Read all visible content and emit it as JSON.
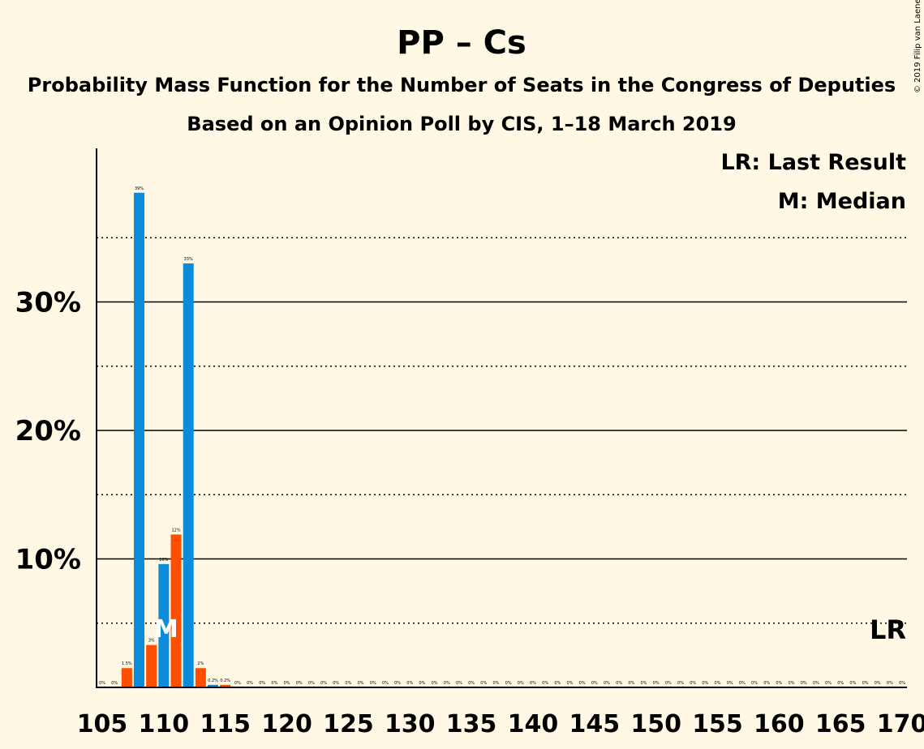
{
  "chart_data": {
    "type": "bar",
    "title": "PP – Cs",
    "subtitle": "Probability Mass Function for the Number of Seats in the Congress of Deputies",
    "subtitle2": "Based on an Opinion Poll by CIS, 1–18 March 2019",
    "copyright": "© 2019 Filip van Laenen",
    "legend": {
      "placement": "top-right",
      "lr": "LR: Last Result",
      "median": "M: Median"
    },
    "markers": {
      "median_label": "M",
      "median_seat": 110,
      "lr_label": "LR",
      "lr_seat": 169
    },
    "xlim": [
      105,
      170
    ],
    "ylim": [
      0,
      42
    ],
    "y_ticks": [
      {
        "value": 10,
        "label": "10%"
      },
      {
        "value": 20,
        "label": "20%"
      },
      {
        "value": 30,
        "label": "30%"
      }
    ],
    "y_minor_ticks": [
      5,
      15,
      25,
      35
    ],
    "x_ticks": [
      105,
      110,
      115,
      120,
      125,
      130,
      135,
      140,
      145,
      150,
      155,
      160,
      165,
      170
    ],
    "colors": {
      "blue": "#0C8CD8",
      "orange": "#FF4E00",
      "bg": "#FFF8E4"
    },
    "bars": [
      {
        "x": 105,
        "value": 0,
        "label": "0%"
      },
      {
        "x": 106,
        "value": 0,
        "label": "0%"
      },
      {
        "x": 107,
        "value": 1.5,
        "label": "1.5%"
      },
      {
        "x": 108,
        "value": 38.5,
        "label": "39%"
      },
      {
        "x": 109,
        "value": 3.3,
        "label": "3%"
      },
      {
        "x": 110,
        "value": 9.6,
        "label": "10%"
      },
      {
        "x": 111,
        "value": 11.9,
        "label": "12%"
      },
      {
        "x": 112,
        "value": 33,
        "label": "33%"
      },
      {
        "x": 113,
        "value": 1.5,
        "label": "2%"
      },
      {
        "x": 114,
        "value": 0.2,
        "label": "0.2%"
      },
      {
        "x": 115,
        "value": 0.2,
        "label": "0.2%"
      },
      {
        "x": 116,
        "value": 0,
        "label": "0%"
      },
      {
        "x": 117,
        "value": 0,
        "label": "0%"
      },
      {
        "x": 118,
        "value": 0,
        "label": "0%"
      },
      {
        "x": 119,
        "value": 0,
        "label": "0%"
      },
      {
        "x": 120,
        "value": 0,
        "label": "0%"
      },
      {
        "x": 121,
        "value": 0,
        "label": "0%"
      },
      {
        "x": 122,
        "value": 0,
        "label": "0%"
      },
      {
        "x": 123,
        "value": 0,
        "label": "0%"
      },
      {
        "x": 124,
        "value": 0,
        "label": "0%"
      },
      {
        "x": 125,
        "value": 0,
        "label": "0%"
      },
      {
        "x": 126,
        "value": 0,
        "label": "0%"
      },
      {
        "x": 127,
        "value": 0,
        "label": "0%"
      },
      {
        "x": 128,
        "value": 0,
        "label": "0%"
      },
      {
        "x": 129,
        "value": 0,
        "label": "0%"
      },
      {
        "x": 130,
        "value": 0,
        "label": "0%"
      },
      {
        "x": 131,
        "value": 0,
        "label": "0%"
      },
      {
        "x": 132,
        "value": 0,
        "label": "0%"
      },
      {
        "x": 133,
        "value": 0,
        "label": "0%"
      },
      {
        "x": 134,
        "value": 0,
        "label": "0%"
      },
      {
        "x": 135,
        "value": 0,
        "label": "0%"
      },
      {
        "x": 136,
        "value": 0,
        "label": "0%"
      },
      {
        "x": 137,
        "value": 0,
        "label": "0%"
      },
      {
        "x": 138,
        "value": 0,
        "label": "0%"
      },
      {
        "x": 139,
        "value": 0,
        "label": "0%"
      },
      {
        "x": 140,
        "value": 0,
        "label": "0%"
      },
      {
        "x": 141,
        "value": 0,
        "label": "0%"
      },
      {
        "x": 142,
        "value": 0,
        "label": "0%"
      },
      {
        "x": 143,
        "value": 0,
        "label": "0%"
      },
      {
        "x": 144,
        "value": 0,
        "label": "0%"
      },
      {
        "x": 145,
        "value": 0,
        "label": "0%"
      },
      {
        "x": 146,
        "value": 0,
        "label": "0%"
      },
      {
        "x": 147,
        "value": 0,
        "label": "0%"
      },
      {
        "x": 148,
        "value": 0,
        "label": "0%"
      },
      {
        "x": 149,
        "value": 0,
        "label": "0%"
      },
      {
        "x": 150,
        "value": 0,
        "label": "0%"
      },
      {
        "x": 151,
        "value": 0,
        "label": "0%"
      },
      {
        "x": 152,
        "value": 0,
        "label": "0%"
      },
      {
        "x": 153,
        "value": 0,
        "label": "0%"
      },
      {
        "x": 154,
        "value": 0,
        "label": "0%"
      },
      {
        "x": 155,
        "value": 0,
        "label": "0%"
      },
      {
        "x": 156,
        "value": 0,
        "label": "0%"
      },
      {
        "x": 157,
        "value": 0,
        "label": "0%"
      },
      {
        "x": 158,
        "value": 0,
        "label": "0%"
      },
      {
        "x": 159,
        "value": 0,
        "label": "0%"
      },
      {
        "x": 160,
        "value": 0,
        "label": "0%"
      },
      {
        "x": 161,
        "value": 0,
        "label": "0%"
      },
      {
        "x": 162,
        "value": 0,
        "label": "0%"
      },
      {
        "x": 163,
        "value": 0,
        "label": "0%"
      },
      {
        "x": 164,
        "value": 0,
        "label": "0%"
      },
      {
        "x": 165,
        "value": 0,
        "label": "0%"
      },
      {
        "x": 166,
        "value": 0,
        "label": "0%"
      },
      {
        "x": 167,
        "value": 0,
        "label": "0%"
      },
      {
        "x": 168,
        "value": 0,
        "label": "0%"
      },
      {
        "x": 169,
        "value": 0,
        "label": "0%"
      },
      {
        "x": 170,
        "value": 0,
        "label": "0%"
      }
    ]
  }
}
